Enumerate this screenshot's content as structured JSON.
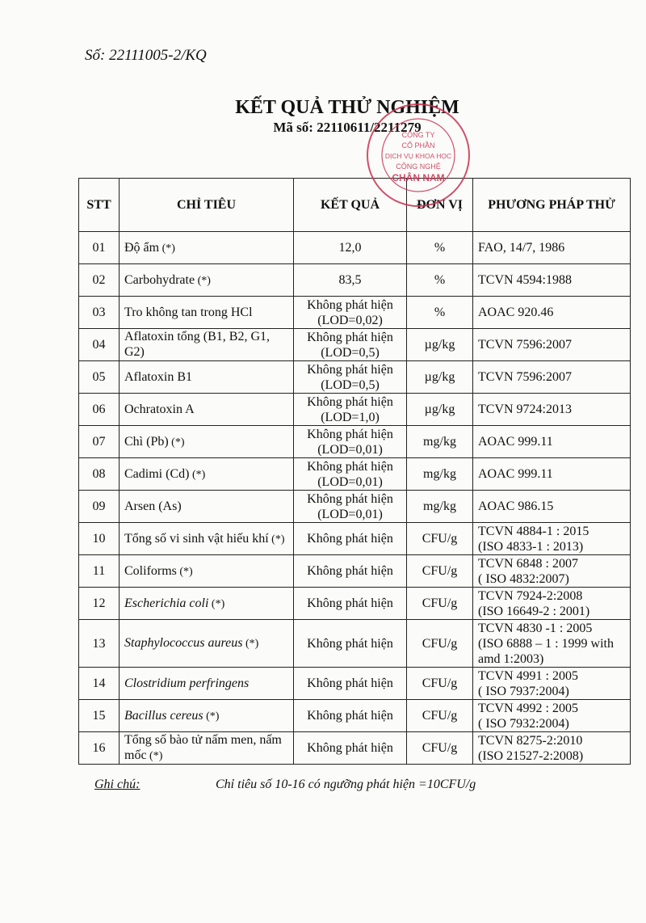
{
  "doc_number": "Số:  22111005-2/KQ",
  "title": "KẾT QUẢ THỬ NGHIỆM",
  "code": "Mã số: 22110611/2211279",
  "stamp": {
    "lines": [
      "CÔNG TY",
      "CỔ PHẦN",
      "DỊCH VỤ KHOA HỌC",
      "CÔNG NGHỆ",
      "CHÂN NAM"
    ],
    "color": "#c8324f"
  },
  "table": {
    "headers": [
      "STT",
      "CHỈ TIÊU",
      "KẾT QUẢ",
      "ĐƠN VỊ",
      "PHƯƠNG PHÁP THỬ"
    ],
    "rows": [
      {
        "stt": "01",
        "name": "Độ ẩm",
        "suffix": " (*)",
        "italic": false,
        "result": [
          "12,0"
        ],
        "unit": "%",
        "method": [
          "FAO, 14/7, 1986"
        ]
      },
      {
        "stt": "02",
        "name": "Carbohydrate",
        "suffix": " (*)",
        "italic": false,
        "result": [
          "83,5"
        ],
        "unit": "%",
        "method": [
          "TCVN 4594:1988"
        ]
      },
      {
        "stt": "03",
        "name": "Tro không tan trong HCl",
        "suffix": "",
        "italic": false,
        "result": [
          "Không phát hiện",
          "(LOD=0,02)"
        ],
        "unit": "%",
        "method": [
          "AOAC 920.46"
        ]
      },
      {
        "stt": "04",
        "name": "Aflatoxin tổng (B1, B2, G1, G2)",
        "suffix": "",
        "italic": false,
        "result": [
          "Không phát hiện",
          "(LOD=0,5)"
        ],
        "unit": "µg/kg",
        "method": [
          "TCVN 7596:2007"
        ]
      },
      {
        "stt": "05",
        "name": "Aflatoxin B1",
        "suffix": "",
        "italic": false,
        "result": [
          "Không phát hiện",
          "(LOD=0,5)"
        ],
        "unit": "µg/kg",
        "method": [
          "TCVN 7596:2007"
        ]
      },
      {
        "stt": "06",
        "name": "Ochratoxin A",
        "suffix": "",
        "italic": false,
        "result": [
          "Không phát hiện",
          "(LOD=1,0)"
        ],
        "unit": "µg/kg",
        "method": [
          "TCVN 9724:2013"
        ]
      },
      {
        "stt": "07",
        "name": "Chì (Pb)",
        "suffix": " (*)",
        "italic": false,
        "result": [
          "Không phát hiện",
          "(LOD=0,01)"
        ],
        "unit": "mg/kg",
        "method": [
          "AOAC 999.11"
        ]
      },
      {
        "stt": "08",
        "name": "Cadimi (Cd)",
        "suffix": " (*)",
        "italic": false,
        "result": [
          "Không phát hiện",
          "(LOD=0,01)"
        ],
        "unit": "mg/kg",
        "method": [
          "AOAC 999.11"
        ]
      },
      {
        "stt": "09",
        "name": "Arsen (As)",
        "suffix": "",
        "italic": false,
        "result": [
          "Không phát hiện",
          "(LOD=0,01)"
        ],
        "unit": "mg/kg",
        "method": [
          "AOAC 986.15"
        ]
      },
      {
        "stt": "10",
        "name": "Tổng số vi sinh vật hiếu khí",
        "suffix": " (*)",
        "italic": false,
        "result": [
          "Không phát hiện"
        ],
        "unit": "CFU/g",
        "method": [
          "TCVN 4884-1 : 2015",
          " (ISO 4833-1 : 2013)"
        ]
      },
      {
        "stt": "11",
        "name": "Coliforms",
        "suffix": " (*)",
        "italic": false,
        "result": [
          "Không phát hiện"
        ],
        "unit": "CFU/g",
        "method": [
          "TCVN 6848 : 2007",
          " ( ISO 4832:2007)"
        ]
      },
      {
        "stt": "12",
        "name": "Escherichia coli",
        "suffix": " (*)",
        "italic": true,
        "result": [
          "Không phát hiện"
        ],
        "unit": "CFU/g",
        "method": [
          "TCVN 7924-2:2008",
          " (ISO 16649-2 : 2001)"
        ]
      },
      {
        "stt": "13",
        "name": "Staphylococcus aureus",
        "suffix": " (*)",
        "italic": true,
        "result": [
          "Không phát hiện"
        ],
        "unit": "CFU/g",
        "method": [
          "TCVN 4830 -1 : 2005",
          "(ISO 6888 – 1 : 1999 with",
          "amd 1:2003)"
        ]
      },
      {
        "stt": "14",
        "name": "Clostridium perfringens",
        "suffix": "",
        "italic": true,
        "result": [
          "Không phát hiện"
        ],
        "unit": "CFU/g",
        "method": [
          "TCVN 4991 : 2005",
          " ( ISO 7937:2004)"
        ]
      },
      {
        "stt": "15",
        "name": "Bacillus cereus",
        "suffix": " (*)",
        "italic": true,
        "result": [
          "Không phát hiện"
        ],
        "unit": "CFU/g",
        "method": [
          "TCVN 4992 : 2005",
          " ( ISO 7932:2004)"
        ]
      },
      {
        "stt": "16",
        "name": "Tổng số bào tử nấm men, nấm mốc",
        "suffix": " (*)",
        "italic": false,
        "result": [
          "Không phát hiện"
        ],
        "unit": "CFU/g",
        "method": [
          "TCVN 8275-2:2010",
          "(ISO 21527-2:2008)"
        ]
      }
    ]
  },
  "note": {
    "label": "Ghi chú:",
    "text": "Chỉ tiêu số 10-16 có ngưỡng phát hiện =10CFU/g"
  }
}
